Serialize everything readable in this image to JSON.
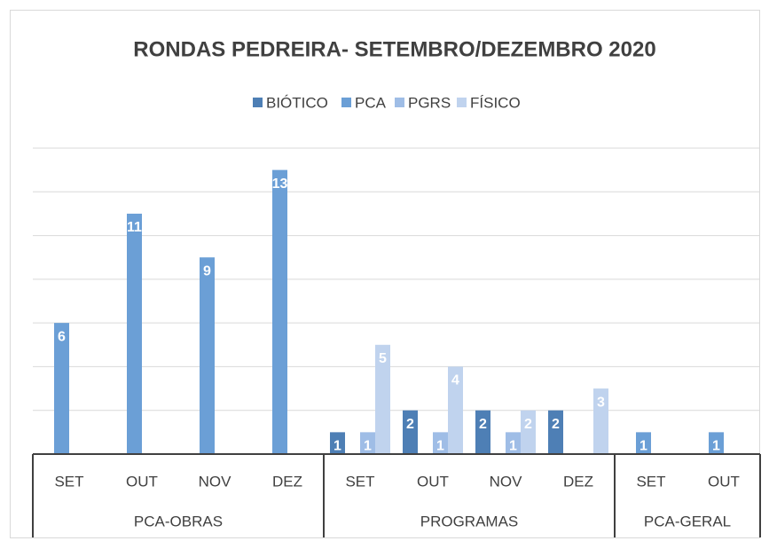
{
  "chart_data": {
    "type": "bar",
    "title": "RONDAS PEDREIRA- SETEMBRO/DEZEMBRO 2020",
    "categories": [
      "SET",
      "OUT",
      "NOV",
      "DEZ",
      "SET",
      "OUT",
      "NOV",
      "DEZ",
      "SET",
      "OUT"
    ],
    "category_groups": [
      {
        "name": "PCA-OBRAS",
        "size": 4
      },
      {
        "name": "PROGRAMAS",
        "size": 4
      },
      {
        "name": "PCA-GERAL",
        "size": 2
      }
    ],
    "series": [
      {
        "name": "BIÓTICO",
        "color": "#4e7fb5",
        "values": [
          null,
          null,
          null,
          null,
          1,
          2,
          2,
          2,
          null,
          null
        ]
      },
      {
        "name": "PCA",
        "color": "#6b9fd6",
        "values": [
          6,
          11,
          9,
          13,
          null,
          null,
          null,
          null,
          1,
          1
        ]
      },
      {
        "name": "PGRS",
        "color": "#9fbde6",
        "values": [
          null,
          null,
          null,
          null,
          1,
          1,
          1,
          null,
          null,
          null
        ]
      },
      {
        "name": "FÍSICO",
        "color": "#c0d3ee",
        "values": [
          null,
          null,
          null,
          null,
          5,
          4,
          2,
          3,
          null,
          null
        ]
      }
    ],
    "ylim": [
      0,
      14
    ],
    "yticks": [
      0,
      2,
      4,
      6,
      8,
      10,
      12,
      14
    ],
    "grid": true,
    "legend": "top"
  }
}
